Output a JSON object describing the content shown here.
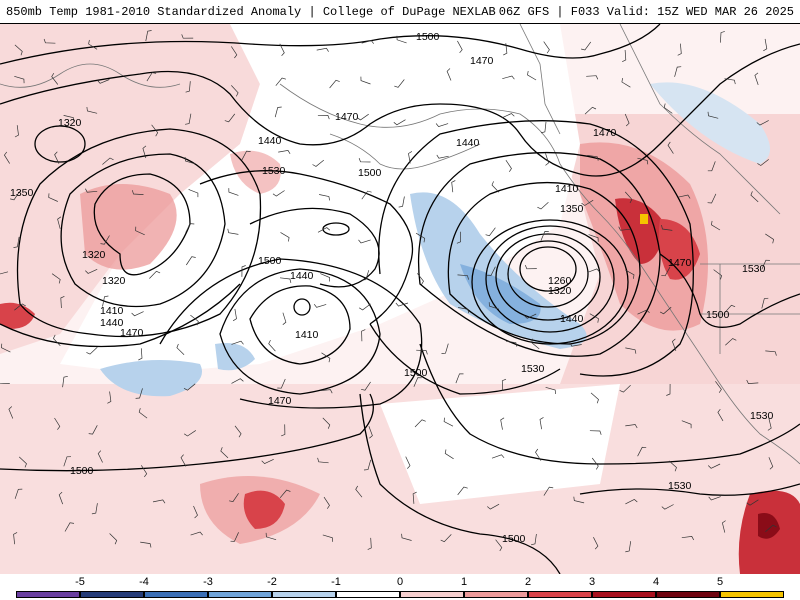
{
  "header": {
    "left_title": "850mb Temp 1981-2010 Standardized Anomaly | College of DuPage NEXLAB",
    "right_title": "06Z GFS | F033 Valid: 15Z WED MAR 26 2025"
  },
  "colorbar": {
    "ticks": [
      "-5",
      "-4",
      "-3",
      "-2",
      "-1",
      "0",
      "1",
      "2",
      "3",
      "4",
      "5"
    ],
    "colors": [
      "#6a3fa0",
      "#253c78",
      "#3b6fb6",
      "#6fa3d8",
      "#b7d2ec",
      "#ffffff",
      "#f6cfcf",
      "#ec9a9a",
      "#d8434a",
      "#a8111f",
      "#6e0410",
      "#f5c400"
    ]
  },
  "contour_labels": [
    {
      "text": "1500"
    },
    {
      "text": "1470"
    },
    {
      "text": "1470"
    },
    {
      "text": "1470"
    },
    {
      "text": "1320"
    },
    {
      "text": "1440"
    },
    {
      "text": "1530"
    },
    {
      "text": "1500"
    },
    {
      "text": "1440"
    },
    {
      "text": "1350"
    },
    {
      "text": "1410"
    },
    {
      "text": "1350"
    },
    {
      "text": "1320"
    },
    {
      "text": "1260"
    },
    {
      "text": "1320"
    },
    {
      "text": "1440"
    },
    {
      "text": "1500"
    },
    {
      "text": "1440"
    },
    {
      "text": "1410"
    },
    {
      "text": "1410"
    },
    {
      "text": "1440"
    },
    {
      "text": "1470"
    },
    {
      "text": "1470"
    },
    {
      "text": "1530"
    },
    {
      "text": "1500"
    },
    {
      "text": "1470"
    },
    {
      "text": "1530"
    },
    {
      "text": "1500"
    },
    {
      "text": "1530"
    },
    {
      "text": "1500"
    },
    {
      "text": "1530"
    },
    {
      "text": "1500"
    },
    {
      "text": "1320"
    }
  ]
}
